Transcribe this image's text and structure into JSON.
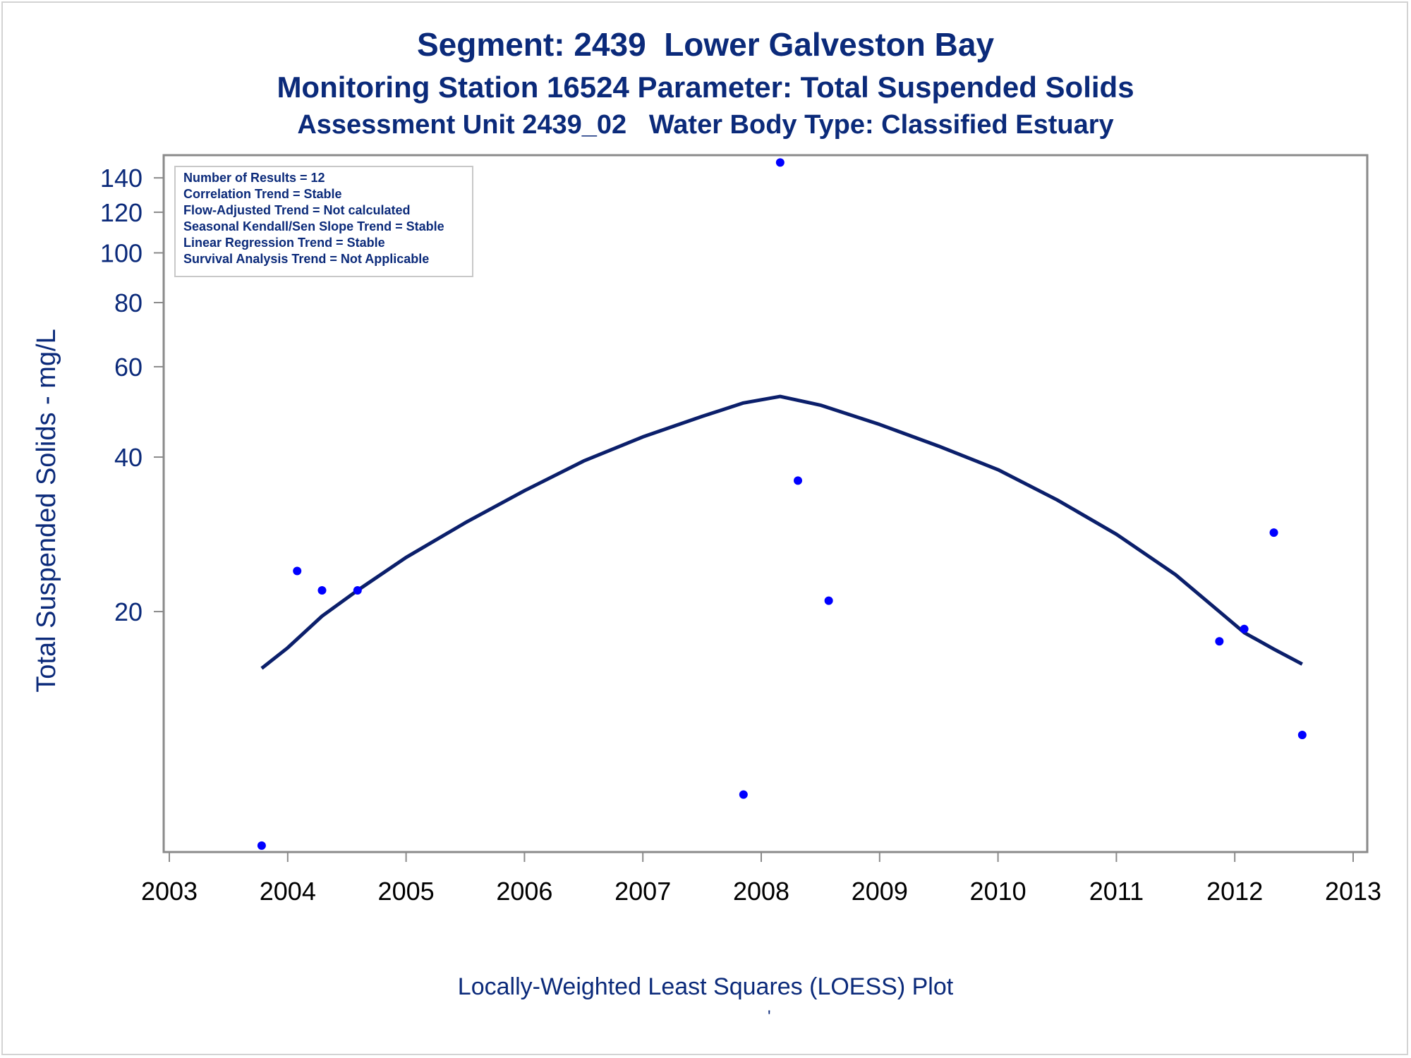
{
  "titles": {
    "line1": "Segment: 2439  Lower Galveston Bay",
    "line2": "Monitoring Station 16524 Parameter: Total Suspended Solids",
    "line3": "Assessment Unit 2439_02   Water Body Type: Classified Estuary"
  },
  "footnote": "Locally-Weighted Least Squares (LOESS) Plot",
  "footnote_mark": "'",
  "colors": {
    "text": "#0b2a7a",
    "points": "#0000ff",
    "curve": "#0b1f6b",
    "axis": "#8a8a8a"
  },
  "chart_data": {
    "type": "scatter",
    "title": "Segment: 2439  Lower Galveston Bay",
    "ylabel": "Total Suspended Solids - mg/L",
    "xlabel": "",
    "y_scale": "log",
    "xlim": [
      2003,
      2013
    ],
    "ylim": [
      6.8,
      155
    ],
    "x_ticks": [
      2003,
      2004,
      2005,
      2006,
      2007,
      2008,
      2009,
      2010,
      2011,
      2012,
      2013
    ],
    "y_ticks": [
      20,
      40,
      60,
      80,
      100,
      120,
      140
    ],
    "grid": false,
    "stats_box": [
      "Number of Results = 12",
      "Correlation Trend = Stable",
      "Flow-Adjusted Trend = Not calculated",
      "Seasonal Kendall/Sen Slope Trend = Stable",
      "Linear Regression Trend = Stable",
      "Survival Analysis Trend = Not Applicable"
    ],
    "stats_box_position": "top-left",
    "series": [
      {
        "type": "scatter",
        "points": [
          [
            2003.78,
            7.0
          ],
          [
            2004.08,
            24.0
          ],
          [
            2004.29,
            22.0
          ],
          [
            2004.59,
            22.0
          ],
          [
            2007.85,
            8.8
          ],
          [
            2008.16,
            150.0
          ],
          [
            2008.31,
            36.0
          ],
          [
            2008.57,
            21.0
          ],
          [
            2011.87,
            17.5
          ],
          [
            2012.08,
            18.5
          ],
          [
            2012.33,
            28.5
          ],
          [
            2012.57,
            11.5
          ]
        ]
      },
      {
        "type": "line",
        "points": [
          [
            2003.78,
            15.5
          ],
          [
            2004.0,
            17.0
          ],
          [
            2004.29,
            19.6
          ],
          [
            2004.59,
            22.0
          ],
          [
            2005.0,
            25.5
          ],
          [
            2005.5,
            29.8
          ],
          [
            2006.0,
            34.4
          ],
          [
            2006.5,
            39.3
          ],
          [
            2007.0,
            43.8
          ],
          [
            2007.5,
            48.0
          ],
          [
            2007.85,
            51.0
          ],
          [
            2008.16,
            52.5
          ],
          [
            2008.5,
            50.5
          ],
          [
            2009.0,
            46.3
          ],
          [
            2009.5,
            42.0
          ],
          [
            2010.0,
            37.8
          ],
          [
            2010.5,
            33.0
          ],
          [
            2011.0,
            28.3
          ],
          [
            2011.5,
            23.6
          ],
          [
            2011.87,
            20.0
          ],
          [
            2012.08,
            18.2
          ],
          [
            2012.33,
            16.9
          ],
          [
            2012.57,
            15.8
          ]
        ]
      }
    ]
  }
}
